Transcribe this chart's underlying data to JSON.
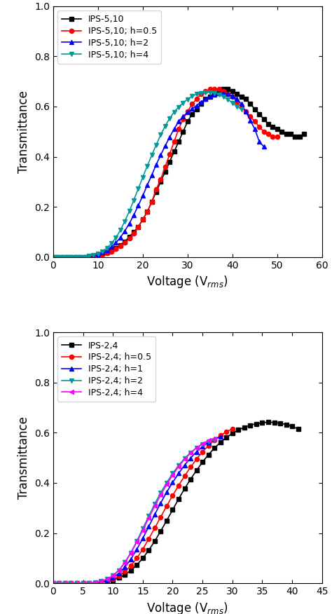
{
  "plot1": {
    "series": [
      {
        "label": "IPS-5,10",
        "color": "black",
        "marker": "s",
        "x": [
          0,
          1,
          2,
          3,
          4,
          5,
          6,
          7,
          8,
          9,
          10,
          11,
          12,
          13,
          14,
          15,
          16,
          17,
          18,
          19,
          20,
          21,
          22,
          23,
          24,
          25,
          26,
          27,
          28,
          29,
          30,
          31,
          32,
          33,
          34,
          35,
          36,
          37,
          38,
          39,
          40,
          41,
          42,
          43,
          44,
          45,
          46,
          47,
          48,
          49,
          50,
          51,
          52,
          53,
          54,
          55,
          56
        ],
        "y": [
          0,
          0,
          0,
          0,
          0,
          0,
          0,
          0,
          0.002,
          0.004,
          0.007,
          0.012,
          0.018,
          0.026,
          0.035,
          0.047,
          0.062,
          0.08,
          0.1,
          0.12,
          0.15,
          0.18,
          0.22,
          0.26,
          0.3,
          0.34,
          0.38,
          0.42,
          0.46,
          0.5,
          0.54,
          0.57,
          0.59,
          0.61,
          0.63,
          0.64,
          0.65,
          0.66,
          0.67,
          0.67,
          0.66,
          0.65,
          0.64,
          0.63,
          0.61,
          0.59,
          0.57,
          0.55,
          0.53,
          0.52,
          0.51,
          0.5,
          0.49,
          0.49,
          0.48,
          0.48,
          0.49
        ]
      },
      {
        "label": "IPS-5,10; h=0.5",
        "color": "red",
        "marker": "o",
        "x": [
          0,
          1,
          2,
          3,
          4,
          5,
          6,
          7,
          8,
          9,
          10,
          11,
          12,
          13,
          14,
          15,
          16,
          17,
          18,
          19,
          20,
          21,
          22,
          23,
          24,
          25,
          26,
          27,
          28,
          29,
          30,
          31,
          32,
          33,
          34,
          35,
          36,
          37,
          38,
          39,
          40,
          41,
          42,
          43,
          44,
          45,
          46,
          47,
          48,
          49,
          50
        ],
        "y": [
          0,
          0,
          0,
          0,
          0,
          0,
          0,
          0,
          0.002,
          0.004,
          0.007,
          0.011,
          0.016,
          0.023,
          0.032,
          0.043,
          0.057,
          0.074,
          0.095,
          0.12,
          0.15,
          0.18,
          0.22,
          0.27,
          0.31,
          0.36,
          0.41,
          0.46,
          0.51,
          0.55,
          0.58,
          0.61,
          0.63,
          0.65,
          0.66,
          0.67,
          0.67,
          0.67,
          0.66,
          0.65,
          0.64,
          0.62,
          0.6,
          0.58,
          0.56,
          0.54,
          0.52,
          0.5,
          0.49,
          0.48,
          0.48
        ]
      },
      {
        "label": "IPS-5,10; h=2",
        "color": "blue",
        "marker": "^",
        "x": [
          0,
          1,
          2,
          3,
          4,
          5,
          6,
          7,
          8,
          9,
          10,
          11,
          12,
          13,
          14,
          15,
          16,
          17,
          18,
          19,
          20,
          21,
          22,
          23,
          24,
          25,
          26,
          27,
          28,
          29,
          30,
          31,
          32,
          33,
          34,
          35,
          36,
          37,
          38,
          39,
          40,
          41,
          42,
          43,
          44,
          45,
          46,
          47
        ],
        "y": [
          0,
          0,
          0,
          0,
          0,
          0,
          0,
          0,
          0.003,
          0.006,
          0.011,
          0.018,
          0.027,
          0.04,
          0.057,
          0.078,
          0.104,
          0.134,
          0.168,
          0.205,
          0.245,
          0.286,
          0.327,
          0.368,
          0.407,
          0.443,
          0.478,
          0.511,
          0.54,
          0.561,
          0.577,
          0.591,
          0.604,
          0.618,
          0.63,
          0.641,
          0.648,
          0.652,
          0.653,
          0.65,
          0.643,
          0.63,
          0.61,
          0.58,
          0.545,
          0.51,
          0.46,
          0.44
        ]
      },
      {
        "label": "IPS-5,10; h=4",
        "color": "#009999",
        "marker": "v",
        "x": [
          0,
          1,
          2,
          3,
          4,
          5,
          6,
          7,
          8,
          9,
          10,
          11,
          12,
          13,
          14,
          15,
          16,
          17,
          18,
          19,
          20,
          21,
          22,
          23,
          24,
          25,
          26,
          27,
          28,
          29,
          30,
          31,
          32,
          33,
          34,
          35,
          36,
          37,
          38,
          39,
          40,
          41,
          42
        ],
        "y": [
          0,
          0,
          0,
          0,
          0,
          0,
          0,
          0,
          0.004,
          0.008,
          0.014,
          0.023,
          0.036,
          0.054,
          0.077,
          0.107,
          0.143,
          0.183,
          0.227,
          0.273,
          0.318,
          0.363,
          0.406,
          0.447,
          0.487,
          0.522,
          0.553,
          0.578,
          0.598,
          0.615,
          0.629,
          0.641,
          0.649,
          0.654,
          0.657,
          0.657,
          0.654,
          0.648,
          0.639,
          0.628,
          0.615,
          0.601,
          0.588
        ]
      }
    ],
    "xlim": [
      0,
      60
    ],
    "xticks": [
      0,
      10,
      20,
      30,
      40,
      50,
      60
    ],
    "ylim": [
      0,
      1.0
    ],
    "yticks": [
      0.0,
      0.2,
      0.4,
      0.6,
      0.8,
      1.0
    ],
    "xlabel": "Voltage (V$_{rms}$)",
    "ylabel": "Transmittance"
  },
  "plot2": {
    "series": [
      {
        "label": "IPS-2,4",
        "color": "black",
        "marker": "s",
        "x": [
          0,
          1,
          2,
          3,
          4,
          5,
          6,
          7,
          8,
          9,
          10,
          11,
          12,
          13,
          14,
          15,
          16,
          17,
          18,
          19,
          20,
          21,
          22,
          23,
          24,
          25,
          26,
          27,
          28,
          29,
          30,
          31,
          32,
          33,
          34,
          35,
          36,
          37,
          38,
          39,
          40,
          41
        ],
        "y": [
          0,
          0,
          0,
          0,
          0,
          0,
          0,
          0,
          0.003,
          0.007,
          0.013,
          0.022,
          0.034,
          0.051,
          0.073,
          0.1,
          0.132,
          0.168,
          0.208,
          0.25,
          0.293,
          0.336,
          0.377,
          0.415,
          0.45,
          0.483,
          0.513,
          0.539,
          0.562,
          0.581,
          0.598,
          0.611,
          0.622,
          0.63,
          0.636,
          0.64,
          0.642,
          0.641,
          0.638,
          0.633,
          0.625,
          0.615
        ]
      },
      {
        "label": "IPS-2,4; h=0.5",
        "color": "red",
        "marker": "o",
        "x": [
          0,
          1,
          2,
          3,
          4,
          5,
          6,
          7,
          8,
          9,
          10,
          11,
          12,
          13,
          14,
          15,
          16,
          17,
          18,
          19,
          20,
          21,
          22,
          23,
          24,
          25,
          26,
          27,
          28,
          29,
          30
        ],
        "y": [
          0,
          0,
          0,
          0,
          0,
          0,
          0,
          0,
          0.004,
          0.009,
          0.017,
          0.029,
          0.047,
          0.07,
          0.1,
          0.136,
          0.177,
          0.22,
          0.264,
          0.308,
          0.35,
          0.39,
          0.428,
          0.463,
          0.495,
          0.524,
          0.549,
          0.571,
          0.589,
          0.604,
          0.615
        ]
      },
      {
        "label": "IPS-2,4; h=1",
        "color": "blue",
        "marker": "^",
        "x": [
          0,
          1,
          2,
          3,
          4,
          5,
          6,
          7,
          8,
          9,
          10,
          11,
          12,
          13,
          14,
          15,
          16,
          17,
          18,
          19,
          20,
          21,
          22,
          23,
          24,
          25,
          26,
          27,
          28
        ],
        "y": [
          0,
          0,
          0,
          0,
          0,
          0,
          0,
          0,
          0.005,
          0.012,
          0.023,
          0.04,
          0.064,
          0.096,
          0.135,
          0.179,
          0.226,
          0.274,
          0.32,
          0.363,
          0.402,
          0.438,
          0.471,
          0.499,
          0.524,
          0.545,
          0.562,
          0.575,
          0.583
        ]
      },
      {
        "label": "IPS-2,4; h=2",
        "color": "#009999",
        "marker": "v",
        "x": [
          0,
          1,
          2,
          3,
          4,
          5,
          6,
          7,
          8,
          9,
          10,
          11,
          12,
          13,
          14,
          15,
          16,
          17,
          18,
          19,
          20,
          21,
          22,
          23,
          24,
          25,
          26,
          27
        ],
        "y": [
          0,
          0,
          0,
          0,
          0,
          0,
          0,
          0.003,
          0.008,
          0.016,
          0.03,
          0.052,
          0.083,
          0.122,
          0.168,
          0.218,
          0.268,
          0.316,
          0.361,
          0.401,
          0.438,
          0.47,
          0.498,
          0.521,
          0.54,
          0.555,
          0.565,
          0.571
        ]
      },
      {
        "label": "IPS-2,4; h=4",
        "color": "magenta",
        "marker": "<",
        "x": [
          0,
          1,
          2,
          3,
          4,
          5,
          6,
          7,
          8,
          9,
          10,
          11,
          12,
          13,
          14,
          15,
          16,
          17,
          18,
          19,
          20,
          21,
          22,
          23,
          24,
          25,
          26,
          27
        ],
        "y": [
          0,
          0,
          0,
          0,
          0,
          0,
          0,
          0.003,
          0.008,
          0.016,
          0.03,
          0.052,
          0.082,
          0.12,
          0.164,
          0.211,
          0.26,
          0.307,
          0.352,
          0.393,
          0.431,
          0.465,
          0.494,
          0.519,
          0.54,
          0.557,
          0.569,
          0.577
        ]
      }
    ],
    "xlim": [
      0,
      45
    ],
    "xticks": [
      0,
      5,
      10,
      15,
      20,
      25,
      30,
      35,
      40,
      45
    ],
    "ylim": [
      0,
      1.0
    ],
    "yticks": [
      0.0,
      0.2,
      0.4,
      0.6,
      0.8,
      1.0
    ],
    "xlabel": "Voltage (V$_{rms}$)",
    "ylabel": "Transmittance"
  }
}
